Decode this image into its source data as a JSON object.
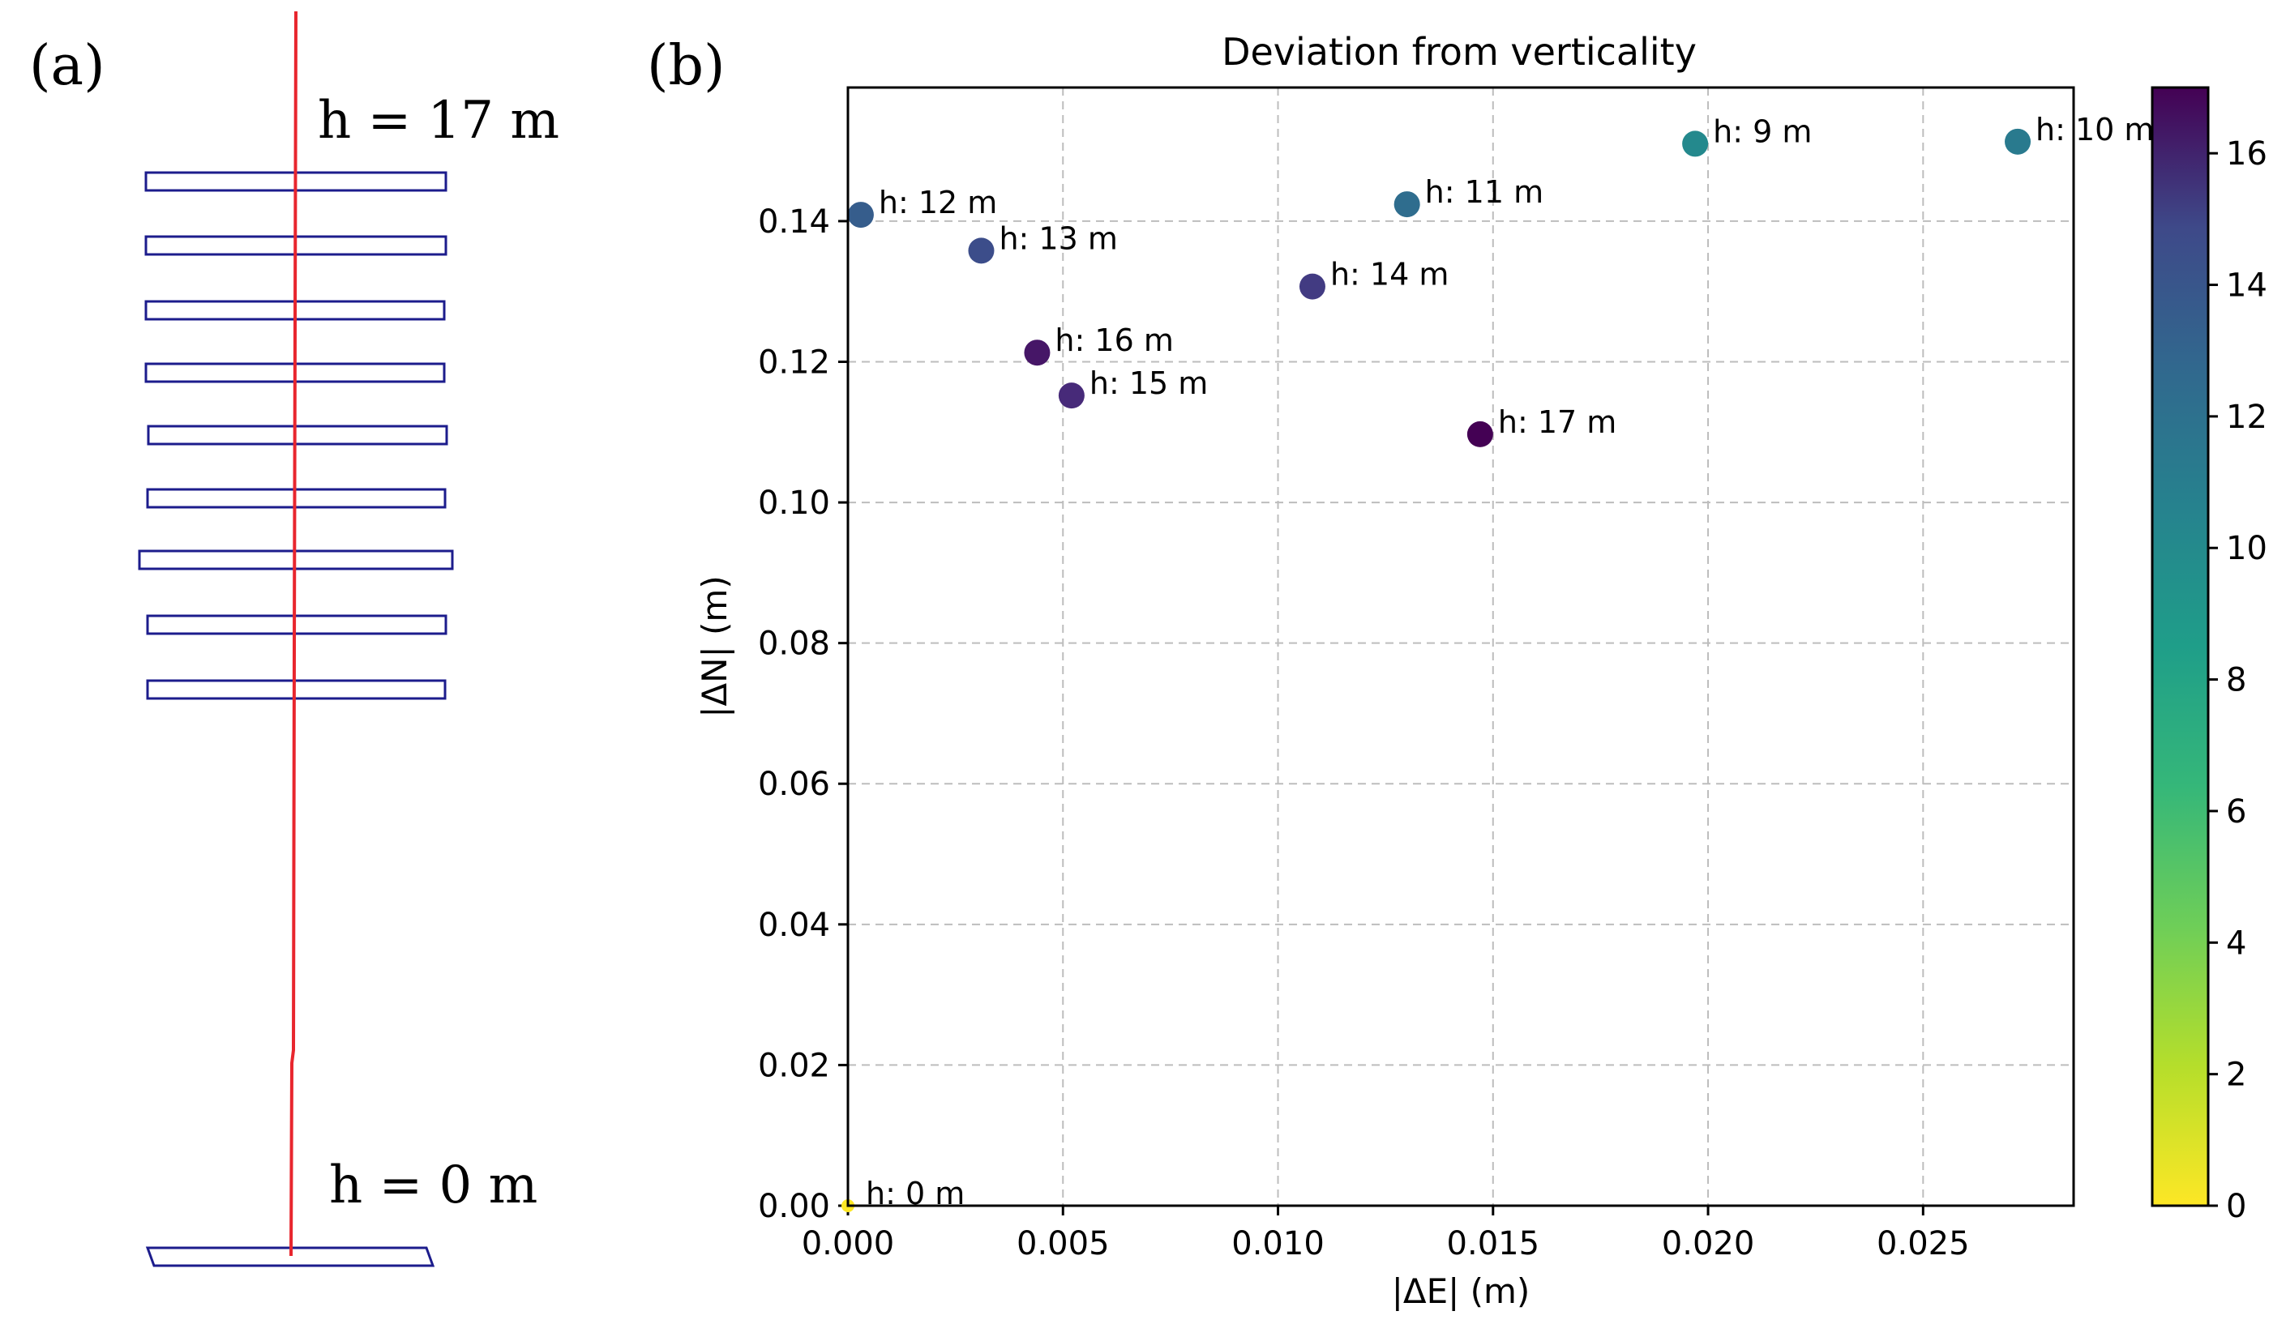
{
  "panel_a": {
    "label": "(a)",
    "top_label": "h = 17 m",
    "bottom_label": "h = 0 m",
    "axis_color": "#e8262e",
    "slice_color": "#1c1c8c"
  },
  "panel_b": {
    "label": "(b)"
  },
  "chart_data": {
    "type": "scatter",
    "title": "Deviation from verticality",
    "xlabel": "|ΔE| (m)",
    "ylabel": "|ΔN| (m)",
    "xlim": [
      0.0,
      0.0285
    ],
    "ylim": [
      0.0,
      0.159
    ],
    "grid": true,
    "x_ticks": [
      0.0,
      0.005,
      0.01,
      0.015,
      0.02,
      0.025
    ],
    "x_tick_labels": [
      "0.000",
      "0.005",
      "0.010",
      "0.015",
      "0.020",
      "0.025"
    ],
    "y_ticks": [
      0.0,
      0.02,
      0.04,
      0.06,
      0.08,
      0.1,
      0.12,
      0.14
    ],
    "y_tick_labels": [
      "0.00",
      "0.02",
      "0.04",
      "0.06",
      "0.08",
      "0.10",
      "0.12",
      "0.14"
    ],
    "colormap": "viridis_r",
    "colorbar": {
      "range": [
        0,
        17
      ],
      "ticks": [
        0,
        2,
        4,
        6,
        8,
        10,
        12,
        14,
        16
      ],
      "tick_labels": [
        "0",
        "2",
        "4",
        "6",
        "8",
        "10",
        "12",
        "14",
        "16"
      ]
    },
    "points": [
      {
        "h": 0,
        "x": 0.0,
        "y": 0.0,
        "label": "h: 0 m"
      },
      {
        "h": 9,
        "x": 0.0197,
        "y": 0.151,
        "label": "h: 9 m"
      },
      {
        "h": 10,
        "x": 0.0272,
        "y": 0.1513,
        "label": "h: 10 m"
      },
      {
        "h": 11,
        "x": 0.013,
        "y": 0.1424,
        "label": "h: 11 m"
      },
      {
        "h": 12,
        "x": 0.0003,
        "y": 0.1409,
        "label": "h: 12 m"
      },
      {
        "h": 13,
        "x": 0.0031,
        "y": 0.1358,
        "label": "h: 13 m"
      },
      {
        "h": 14,
        "x": 0.0108,
        "y": 0.1307,
        "label": "h: 14 m"
      },
      {
        "h": 15,
        "x": 0.0052,
        "y": 0.1152,
        "label": "h: 15 m"
      },
      {
        "h": 16,
        "x": 0.0044,
        "y": 0.1213,
        "label": "h: 16 m"
      },
      {
        "h": 17,
        "x": 0.0147,
        "y": 0.1097,
        "label": "h: 17 m"
      }
    ]
  }
}
